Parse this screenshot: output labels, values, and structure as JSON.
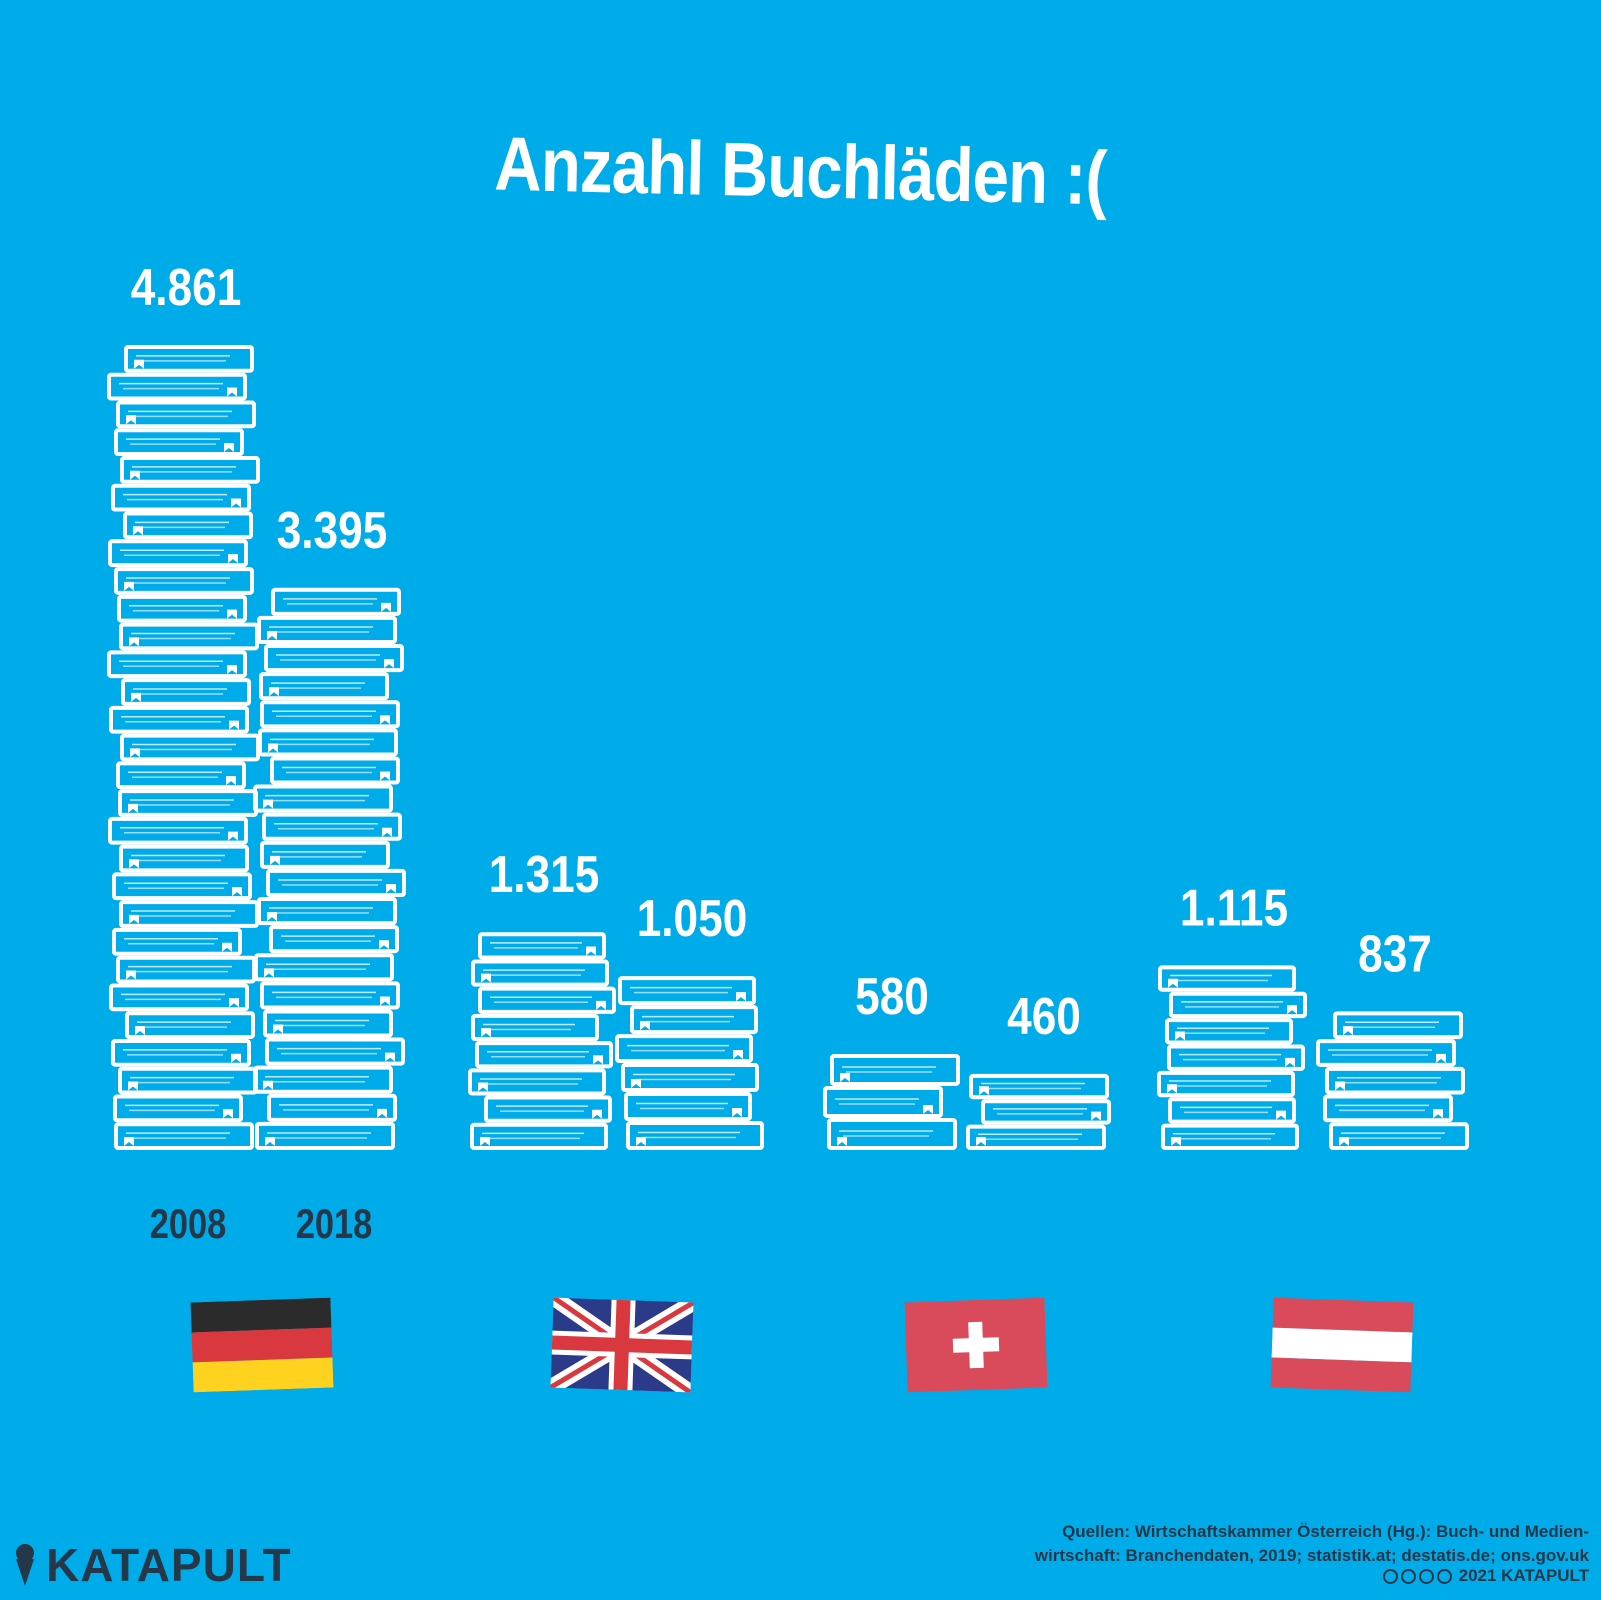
{
  "title": "Anzahl Buchläden :(",
  "chart_data": {
    "type": "bar",
    "categories": [
      "Deutschland",
      "Vereinigtes Königreich",
      "Schweiz",
      "Österreich"
    ],
    "series": [
      {
        "name": "2008",
        "values": [
          4861,
          1315,
          580,
          1115
        ]
      },
      {
        "name": "2018",
        "values": [
          3395,
          1050,
          460,
          837
        ]
      }
    ],
    "value_labels": [
      [
        "4.861",
        "3.395"
      ],
      [
        "1.315",
        "1.050"
      ],
      [
        "580",
        "460"
      ],
      [
        "1.115",
        "837"
      ]
    ],
    "years": [
      "2008",
      "2018"
    ],
    "flags": [
      "germany-flag",
      "uk-flag",
      "switzerland-flag",
      "austria-flag"
    ]
  },
  "colors": {
    "background": "#00abea",
    "books": "#ffffff",
    "text_dark": "#24384a",
    "germany": [
      "#2b2b2b",
      "#d9383f",
      "#ffd21f"
    ],
    "uk": [
      "#2c3a8a",
      "#ffffff",
      "#d9383f"
    ],
    "switzerland": [
      "#d94b5b",
      "#ffffff"
    ],
    "austria": [
      "#d94b5b",
      "#ffffff"
    ]
  },
  "brand": {
    "logo_text": "KATAPULT",
    "logo_icon": "ice-cream-icon"
  },
  "source_line1": "Quellen: Wirtschaftskammer Österreich (Hg.): Buch- und Medien-",
  "source_line2": "wirtschaft: Branchendaten, 2019; statistik.at; destatis.de; ons.gov.uk",
  "copyright": "2021 KATAPULT",
  "license_icons": [
    "cc-icon",
    "by-icon",
    "nc-icon",
    "nd-icon"
  ]
}
